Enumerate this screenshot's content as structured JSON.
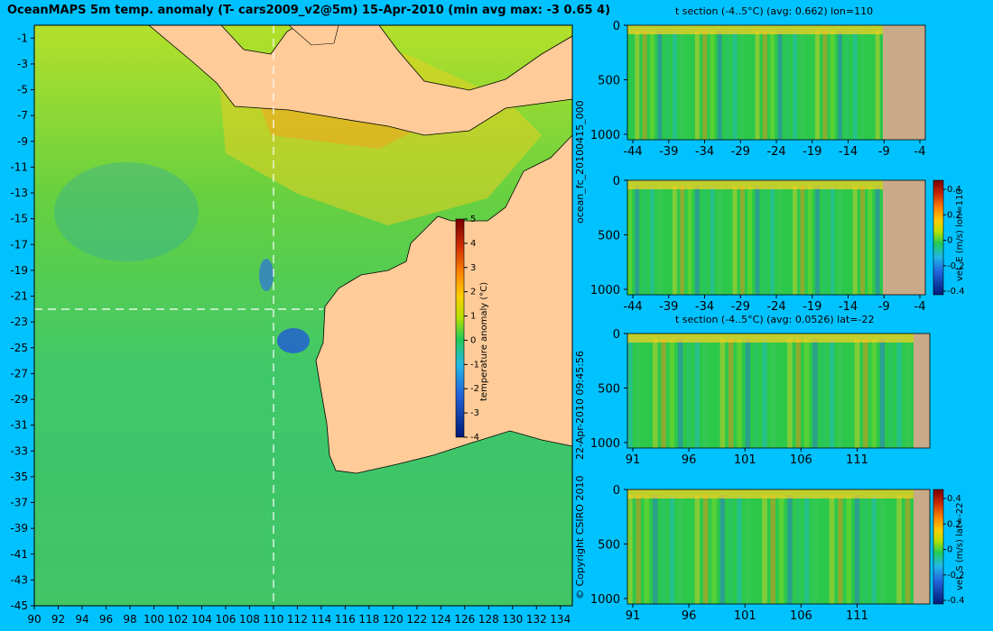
{
  "header": {
    "title": "OceanMAPS 5m temp. anomaly (T- cars2009_v2@5m) 15-Apr-2010 (min avg max: -3 0.65 4)"
  },
  "side_labels": {
    "forecast_id": "ocean_fc_20100415_000",
    "timestamp": "22-Apr-2010 09:45:56",
    "copyright": "© Copyright CSIRO 2010"
  },
  "colors": {
    "background": "#00c2ff",
    "land": "#ffcc99",
    "section_land": "#c9aa88",
    "section_fill": "#2cc84a",
    "crosshair": "#ffffff"
  },
  "chart_data": [
    {
      "id": "map",
      "type": "heatmap",
      "title": "OceanMAPS 5m temp. anomaly (T- cars2009_v2@5m) 15-Apr-2010 (min avg max: -3 0.65 4)",
      "x_ticks": [
        90,
        92,
        94,
        96,
        98,
        100,
        102,
        104,
        106,
        108,
        110,
        112,
        114,
        116,
        118,
        120,
        122,
        124,
        126,
        128,
        130,
        132,
        134
      ],
      "y_ticks": [
        -1,
        -3,
        -5,
        -7,
        -9,
        -11,
        -13,
        -15,
        -17,
        -19,
        -21,
        -23,
        -25,
        -27,
        -29,
        -31,
        -33,
        -35,
        -37,
        -39,
        -41,
        -43,
        -45
      ],
      "xlim": [
        90,
        135
      ],
      "ylim": [
        -45,
        0
      ],
      "crosshair": {
        "lon": 110,
        "lat": -22
      },
      "colorbar": {
        "label": "temperature anomaly (°C)",
        "ticks": [
          5,
          4,
          3,
          2,
          1,
          0,
          -1,
          -2,
          -3,
          -4
        ],
        "range": [
          -4,
          5
        ]
      }
    },
    {
      "id": "section-t-lon",
      "type": "heatmap",
      "title": "t section (-4..5°C) (avg: 0.662) lon=110",
      "x_ticks": [
        "-44",
        "-39",
        "-34",
        "-29",
        "-24",
        "-19",
        "-14",
        "-9",
        "-4"
      ],
      "y_ticks": [
        "0",
        "500",
        "1000"
      ]
    },
    {
      "id": "section-vele-lon",
      "type": "heatmap",
      "title": "",
      "x_ticks": [
        "-44",
        "-39",
        "-34",
        "-29",
        "-24",
        "-19",
        "-14",
        "-9",
        "-4"
      ],
      "y_ticks": [
        "0",
        "500",
        "1000"
      ],
      "colorbar": {
        "label": "vel. E (m/s) lon=110",
        "ticks": [
          "0.4",
          "0.2",
          "0",
          "-0.2",
          "-0.4"
        ]
      }
    },
    {
      "id": "section-t-lat",
      "type": "heatmap",
      "title": "t section (-4..5°C) (avg: 0.0526) lat=-22",
      "x_ticks": [
        "91",
        "96",
        "101",
        "106",
        "111"
      ],
      "y_ticks": [
        "0",
        "500",
        "1000"
      ]
    },
    {
      "id": "section-vels-lat",
      "type": "heatmap",
      "title": "",
      "x_ticks": [
        "91",
        "96",
        "101",
        "106",
        "111"
      ],
      "y_ticks": [
        "0",
        "500",
        "1000"
      ],
      "colorbar": {
        "label": "vel. S (m/s) lat=-22",
        "ticks": [
          "0.4",
          "0.2",
          "0",
          "-0.2",
          "-0.4"
        ]
      }
    }
  ]
}
